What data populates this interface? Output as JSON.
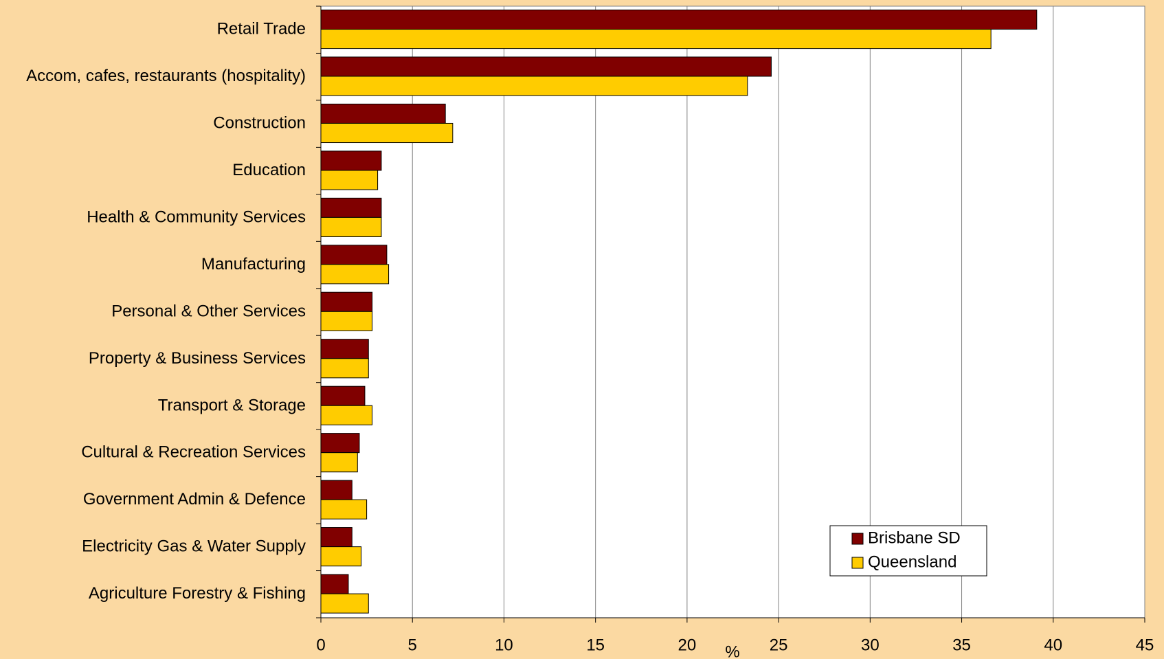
{
  "chart_data": {
    "type": "barh",
    "categories": [
      "Retail Trade",
      "Accom, cafes, restaurants (hospitality)",
      "Construction",
      "Education",
      "Health & Community Services",
      "Manufacturing",
      "Personal & Other Services",
      "Property & Business Services",
      "Transport & Storage",
      "Cultural & Recreation Services",
      "Government Admin & Defence",
      "Electricity Gas & Water Supply",
      "Agriculture Forestry & Fishing"
    ],
    "series": [
      {
        "name": "Brisbane SD",
        "color": "#800000",
        "values": [
          39.1,
          24.6,
          6.8,
          3.3,
          3.3,
          3.6,
          2.8,
          2.6,
          2.4,
          2.1,
          1.7,
          1.7,
          1.5
        ]
      },
      {
        "name": "Queensland",
        "color": "#ffcc00",
        "values": [
          36.6,
          23.3,
          7.2,
          3.1,
          3.3,
          3.7,
          2.8,
          2.6,
          2.8,
          2.0,
          2.5,
          2.2,
          2.6
        ]
      }
    ],
    "x_label": "%",
    "xlim": [
      0,
      45
    ],
    "xticks": [
      0,
      5,
      10,
      15,
      20,
      25,
      30,
      35,
      40,
      45
    ],
    "grid": true,
    "legend": "lower right"
  }
}
